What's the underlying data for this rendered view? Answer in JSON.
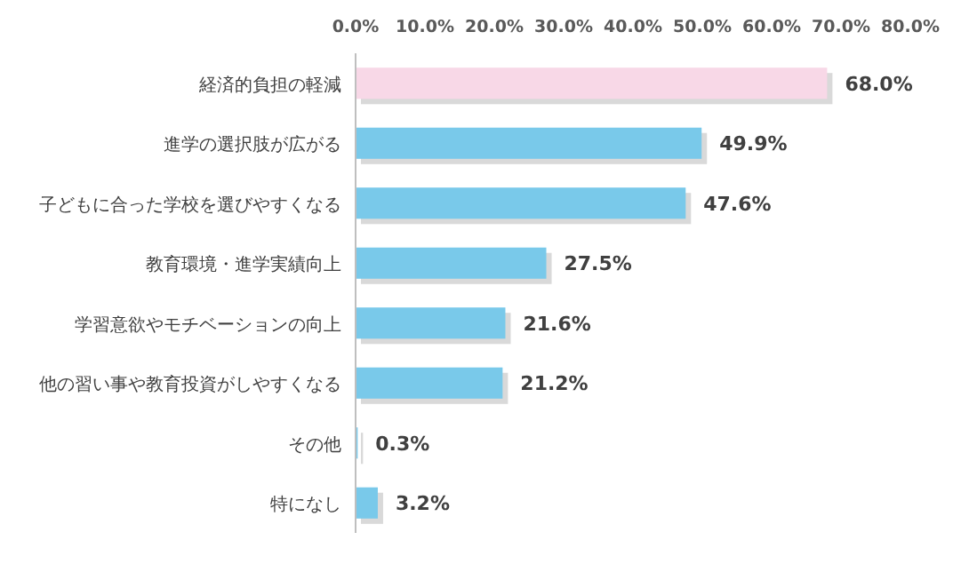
{
  "chart_data": {
    "type": "bar",
    "orientation": "horizontal",
    "categories": [
      "経済的負担の軽減",
      "進学の選択肢が広がる",
      "子どもに合った学校を選びやすくなる",
      "教育環境・進学実績向上",
      "学習意欲やモチベーションの向上",
      "他の習い事や教育投資がしやすくなる",
      "その他",
      "特になし"
    ],
    "values": [
      68.0,
      49.9,
      47.6,
      27.5,
      21.6,
      21.2,
      0.3,
      3.2
    ],
    "colors": [
      "#f8d8e7",
      "#79c9ea",
      "#79c9ea",
      "#79c9ea",
      "#79c9ea",
      "#79c9ea",
      "#79c9ea",
      "#79c9ea"
    ],
    "value_labels": [
      "68.0%",
      "49.9%",
      "47.6%",
      "27.5%",
      "21.6%",
      "21.2%",
      "0.3%",
      "3.2%"
    ],
    "xlim": [
      0,
      80
    ],
    "xticks": [
      {
        "value": 0,
        "label": "0.0%"
      },
      {
        "value": 10,
        "label": "10.0%"
      },
      {
        "value": 20,
        "label": "20.0%"
      },
      {
        "value": 30,
        "label": "30.0%"
      },
      {
        "value": 40,
        "label": "40.0%"
      },
      {
        "value": 50,
        "label": "50.0%"
      },
      {
        "value": 60,
        "label": "60.0%"
      },
      {
        "value": 70,
        "label": "70.0%"
      },
      {
        "value": 80,
        "label": "80.0%"
      }
    ],
    "grid": false
  }
}
